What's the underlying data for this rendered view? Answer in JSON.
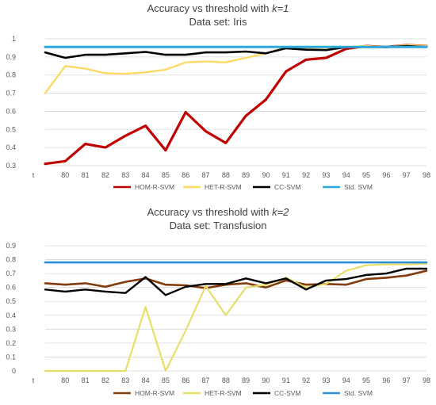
{
  "chart_data": [
    {
      "type": "line",
      "title_prefix": "Accuracy vs threshold with ",
      "title_k": "k=1",
      "subtitle": "Data set: Iris",
      "categories": [
        "t",
        "80",
        "81",
        "82",
        "83",
        "84",
        "85",
        "86",
        "87",
        "88",
        "89",
        "90",
        "91",
        "92",
        "93",
        "94",
        "95",
        "96",
        "97",
        "98"
      ],
      "ylim": [
        0.3,
        1
      ],
      "yticks": [
        "0.3",
        "0.4",
        "0.5",
        "0.6",
        "0.7",
        "0.8",
        "0.9",
        "1"
      ],
      "grid": true,
      "legend_position": "bottom",
      "series": [
        {
          "name": "HOM-R-SVM",
          "color": "#c00000",
          "values": [
            0.31,
            0.325,
            0.42,
            0.4,
            0.465,
            0.52,
            0.385,
            0.595,
            0.49,
            0.425,
            0.575,
            0.665,
            0.82,
            0.885,
            0.895,
            0.945,
            0.96,
            0.955,
            0.965,
            0.96
          ]
        },
        {
          "name": "HET-R-SVM",
          "color": "#ffd966",
          "values": [
            0.7,
            0.85,
            0.835,
            0.81,
            0.807,
            0.815,
            0.83,
            0.87,
            0.875,
            0.87,
            0.895,
            0.92,
            0.955,
            0.945,
            0.94,
            0.955,
            0.96,
            0.955,
            0.965,
            0.96
          ]
        },
        {
          "name": "CC-SVM",
          "color": "#000000",
          "values": [
            0.925,
            0.895,
            0.912,
            0.912,
            0.92,
            0.928,
            0.912,
            0.912,
            0.925,
            0.925,
            0.93,
            0.92,
            0.948,
            0.94,
            0.938,
            0.955,
            0.955,
            0.955,
            0.96,
            0.955
          ]
        },
        {
          "name": "Std. SVM",
          "color": "#2ea8dc",
          "values": [
            0.955,
            0.955,
            0.955,
            0.955,
            0.955,
            0.955,
            0.955,
            0.955,
            0.955,
            0.955,
            0.955,
            0.955,
            0.955,
            0.955,
            0.955,
            0.955,
            0.955,
            0.955,
            0.955,
            0.955
          ]
        }
      ]
    },
    {
      "type": "line",
      "title_prefix": "Accuracy vs threshold with ",
      "title_k": "k=2",
      "subtitle": "Data set: Transfusion",
      "categories": [
        "t",
        "80",
        "81",
        "82",
        "83",
        "84",
        "85",
        "86",
        "87",
        "88",
        "89",
        "90",
        "91",
        "92",
        "93",
        "94",
        "95",
        "96",
        "97",
        "98"
      ],
      "ylim": [
        0,
        0.9
      ],
      "yticks": [
        "0",
        "0.1",
        "0.2",
        "0.3",
        "0.4",
        "0.5",
        "0.6",
        "0.7",
        "0.8",
        "0.9"
      ],
      "grid": true,
      "legend_position": "bottom",
      "series": [
        {
          "name": "HOM-R-SVM",
          "color": "#833c0b",
          "values": [
            0.63,
            0.62,
            0.63,
            0.605,
            0.64,
            0.665,
            0.62,
            0.615,
            0.595,
            0.62,
            0.63,
            0.6,
            0.65,
            0.62,
            0.625,
            0.62,
            0.66,
            0.67,
            0.685,
            0.72
          ]
        },
        {
          "name": "HET-R-SVM",
          "color": "#e6e06a",
          "values": [
            0.0,
            0.0,
            0.0,
            0.0,
            0.0,
            0.46,
            0.0,
            0.29,
            0.61,
            0.4,
            0.6,
            0.62,
            0.67,
            0.6,
            0.625,
            0.72,
            0.76,
            0.765,
            0.765,
            0.77
          ]
        },
        {
          "name": "CC-SVM",
          "color": "#000000",
          "values": [
            0.585,
            0.57,
            0.585,
            0.57,
            0.56,
            0.675,
            0.545,
            0.605,
            0.625,
            0.625,
            0.665,
            0.63,
            0.665,
            0.585,
            0.65,
            0.66,
            0.69,
            0.7,
            0.735,
            0.735
          ]
        },
        {
          "name": "Std. SVM",
          "color": "#2e8fd6",
          "values": [
            0.78,
            0.78,
            0.78,
            0.78,
            0.78,
            0.78,
            0.78,
            0.78,
            0.78,
            0.78,
            0.78,
            0.78,
            0.78,
            0.78,
            0.78,
            0.78,
            0.78,
            0.78,
            0.78,
            0.78
          ]
        }
      ]
    }
  ]
}
